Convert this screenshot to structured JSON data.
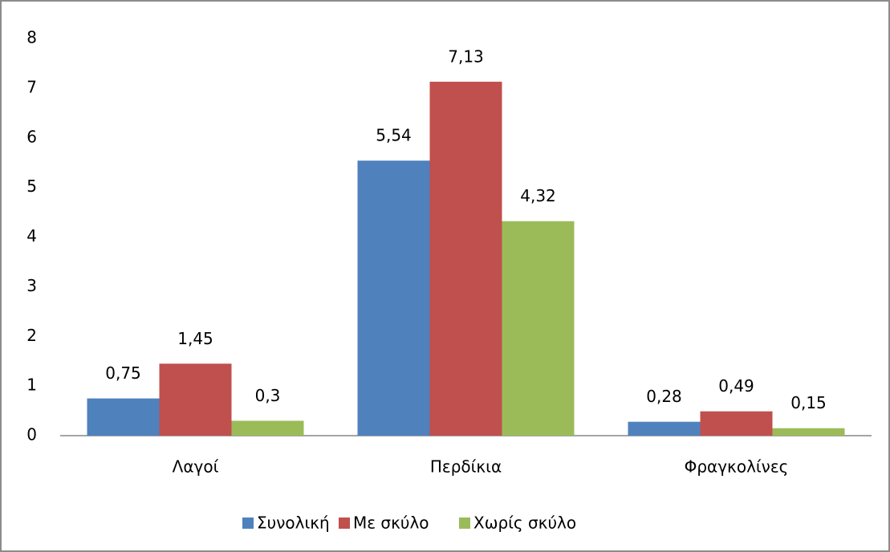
{
  "chart_data": {
    "type": "bar",
    "categories": [
      "Λαγοί",
      "Περδίκια",
      "Φραγκολίνες"
    ],
    "series": [
      {
        "name": "Συνολική",
        "color": "#4f81bd",
        "values": [
          0.75,
          5.54,
          0.28
        ],
        "value_labels": [
          "0,75",
          "5,54",
          "0,28"
        ]
      },
      {
        "name": "Με σκύλο",
        "color": "#c0504d",
        "values": [
          1.45,
          7.13,
          0.49
        ],
        "value_labels": [
          "1,45",
          "7,13",
          "0,49"
        ]
      },
      {
        "name": "Χωρίς σκύλο",
        "color": "#9bbb59",
        "values": [
          0.3,
          4.32,
          0.15
        ],
        "value_labels": [
          "0,3",
          "4,32",
          "0,15"
        ]
      }
    ],
    "ylim": [
      0,
      8
    ],
    "yticks": [
      0,
      1,
      2,
      3,
      4,
      5,
      6,
      7,
      8
    ],
    "grid": false,
    "legend": "bottom"
  }
}
